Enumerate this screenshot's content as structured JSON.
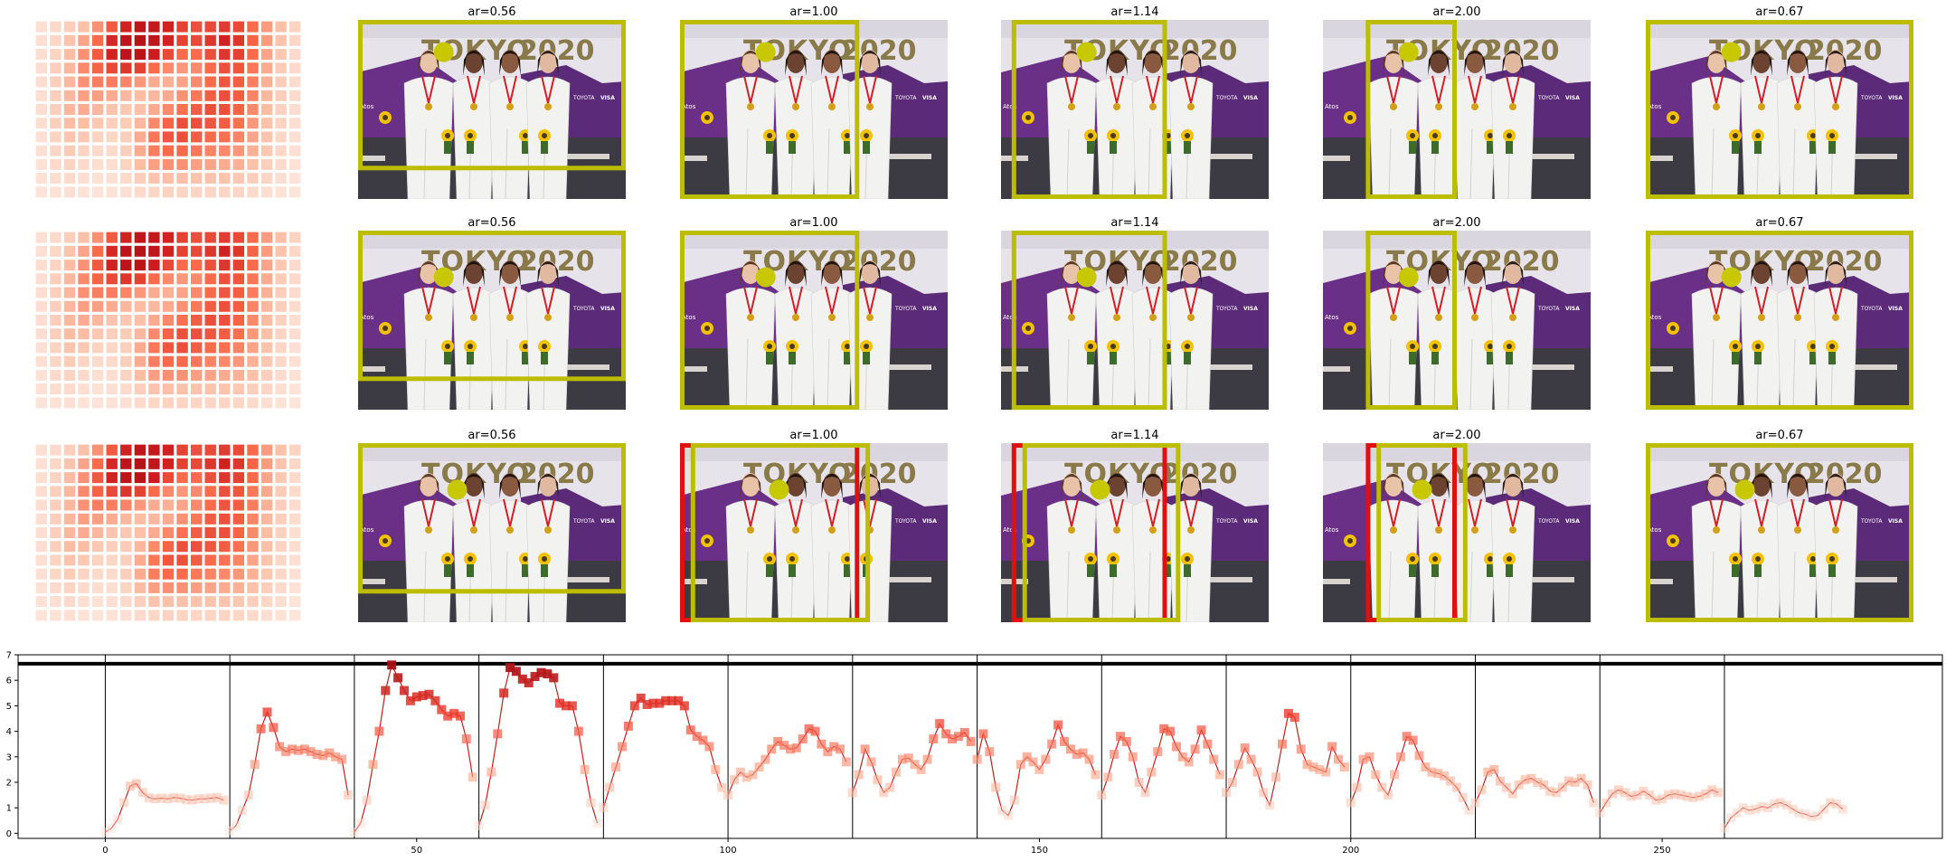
{
  "figure": {
    "panel_titles": [
      "ar=0.56",
      "ar=1.00",
      "ar=1.14",
      "ar=2.00",
      "ar=0.67"
    ],
    "rows": 3,
    "colors": {
      "crop_box": "#bdbd00",
      "alt_box": "#e01010",
      "marker_dot": "#c8c800",
      "photo_backdrop_purple": "#6a2f86",
      "photo_floor": "#3c3a42",
      "suits": "#f2f2f0",
      "heat_low": "#fde9df",
      "heat_high": "#a50f15"
    },
    "heatmap": {
      "type": "heatmap",
      "cols": 19,
      "rows": 13,
      "matrix": [
        [
          0.05,
          0.08,
          0.14,
          0.22,
          0.38,
          0.55,
          0.72,
          0.82,
          0.78,
          0.72,
          0.62,
          0.58,
          0.6,
          0.64,
          0.6,
          0.5,
          0.35,
          0.22,
          0.12
        ],
        [
          0.05,
          0.1,
          0.2,
          0.32,
          0.5,
          0.7,
          0.85,
          0.9,
          0.82,
          0.72,
          0.62,
          0.6,
          0.66,
          0.72,
          0.66,
          0.52,
          0.35,
          0.2,
          0.1
        ],
        [
          0.06,
          0.12,
          0.24,
          0.38,
          0.55,
          0.72,
          0.85,
          0.86,
          0.74,
          0.6,
          0.5,
          0.5,
          0.58,
          0.66,
          0.62,
          0.5,
          0.32,
          0.18,
          0.08
        ],
        [
          0.06,
          0.14,
          0.26,
          0.4,
          0.52,
          0.6,
          0.66,
          0.62,
          0.5,
          0.4,
          0.36,
          0.4,
          0.5,
          0.58,
          0.56,
          0.46,
          0.3,
          0.16,
          0.08
        ],
        [
          0.06,
          0.14,
          0.26,
          0.38,
          0.44,
          0.44,
          0.42,
          0.36,
          0.3,
          0.28,
          0.32,
          0.4,
          0.5,
          0.56,
          0.54,
          0.44,
          0.28,
          0.15,
          0.07
        ],
        [
          0.06,
          0.14,
          0.26,
          0.34,
          0.34,
          0.3,
          0.26,
          0.24,
          0.26,
          0.3,
          0.38,
          0.46,
          0.54,
          0.58,
          0.54,
          0.42,
          0.26,
          0.14,
          0.07
        ],
        [
          0.06,
          0.14,
          0.26,
          0.3,
          0.26,
          0.2,
          0.18,
          0.22,
          0.3,
          0.4,
          0.48,
          0.54,
          0.58,
          0.58,
          0.52,
          0.4,
          0.24,
          0.13,
          0.06
        ],
        [
          0.06,
          0.14,
          0.24,
          0.24,
          0.18,
          0.14,
          0.16,
          0.26,
          0.4,
          0.52,
          0.58,
          0.58,
          0.56,
          0.54,
          0.48,
          0.36,
          0.22,
          0.12,
          0.06
        ],
        [
          0.05,
          0.12,
          0.2,
          0.18,
          0.12,
          0.1,
          0.14,
          0.3,
          0.46,
          0.56,
          0.58,
          0.54,
          0.5,
          0.48,
          0.42,
          0.32,
          0.2,
          0.1,
          0.05
        ],
        [
          0.05,
          0.1,
          0.16,
          0.12,
          0.08,
          0.08,
          0.14,
          0.3,
          0.44,
          0.5,
          0.5,
          0.46,
          0.42,
          0.4,
          0.36,
          0.28,
          0.18,
          0.09,
          0.05
        ],
        [
          0.04,
          0.08,
          0.12,
          0.08,
          0.06,
          0.06,
          0.12,
          0.24,
          0.34,
          0.38,
          0.38,
          0.34,
          0.32,
          0.3,
          0.28,
          0.22,
          0.14,
          0.08,
          0.04
        ],
        [
          0.04,
          0.06,
          0.08,
          0.06,
          0.04,
          0.05,
          0.08,
          0.14,
          0.2,
          0.22,
          0.22,
          0.2,
          0.2,
          0.2,
          0.18,
          0.14,
          0.1,
          0.06,
          0.03
        ],
        [
          0.03,
          0.04,
          0.05,
          0.04,
          0.03,
          0.04,
          0.05,
          0.08,
          0.1,
          0.12,
          0.12,
          0.11,
          0.11,
          0.11,
          0.1,
          0.08,
          0.06,
          0.04,
          0.02
        ]
      ]
    },
    "photo_text": [
      "TOKYO",
      "2020",
      "Atos",
      "TOYOTA",
      "VISA"
    ],
    "boxes": [
      [
        {
          "left": 0.0,
          "top": 0.0,
          "right": 1.0,
          "bottom": 0.84,
          "dot_x": 0.32,
          "dot_y": 0.18
        },
        {
          "left": 0.0,
          "top": 0.0,
          "right": 0.67,
          "bottom": 1.0,
          "dot_x": 0.32,
          "dot_y": 0.18
        },
        {
          "left": 0.04,
          "top": 0.0,
          "right": 0.62,
          "bottom": 1.0,
          "dot_x": 0.32,
          "dot_y": 0.18
        },
        {
          "left": 0.16,
          "top": 0.0,
          "right": 0.5,
          "bottom": 1.0,
          "dot_x": 0.32,
          "dot_y": 0.18
        },
        {
          "left": 0.0,
          "top": 0.0,
          "right": 1.0,
          "bottom": 1.0,
          "dot_x": 0.32,
          "dot_y": 0.18
        }
      ],
      [
        {
          "left": 0.0,
          "top": 0.0,
          "right": 1.0,
          "bottom": 0.84,
          "dot_x": 0.32,
          "dot_y": 0.26
        },
        {
          "left": 0.0,
          "top": 0.0,
          "right": 0.67,
          "bottom": 1.0,
          "dot_x": 0.32,
          "dot_y": 0.26
        },
        {
          "left": 0.04,
          "top": 0.0,
          "right": 0.62,
          "bottom": 1.0,
          "dot_x": 0.32,
          "dot_y": 0.26
        },
        {
          "left": 0.16,
          "top": 0.0,
          "right": 0.5,
          "bottom": 1.0,
          "dot_x": 0.32,
          "dot_y": 0.26
        },
        {
          "left": 0.0,
          "top": 0.0,
          "right": 1.0,
          "bottom": 1.0,
          "dot_x": 0.32,
          "dot_y": 0.26
        }
      ],
      [
        {
          "left": 0.0,
          "top": 0.0,
          "right": 1.0,
          "bottom": 0.84,
          "dot_x": 0.37,
          "dot_y": 0.26,
          "alt": null
        },
        {
          "left": 0.04,
          "top": 0.0,
          "right": 0.71,
          "bottom": 1.0,
          "dot_x": 0.37,
          "dot_y": 0.26,
          "alt": {
            "left": 0.0,
            "top": 0.0,
            "right": 0.67,
            "bottom": 1.0
          }
        },
        {
          "left": 0.08,
          "top": 0.0,
          "right": 0.67,
          "bottom": 1.0,
          "dot_x": 0.37,
          "dot_y": 0.26,
          "alt": {
            "left": 0.04,
            "top": 0.0,
            "right": 0.62,
            "bottom": 1.0
          }
        },
        {
          "left": 0.2,
          "top": 0.0,
          "right": 0.54,
          "bottom": 1.0,
          "dot_x": 0.37,
          "dot_y": 0.26,
          "alt": {
            "left": 0.16,
            "top": 0.0,
            "right": 0.5,
            "bottom": 1.0
          }
        },
        {
          "left": 0.0,
          "top": 0.0,
          "right": 1.0,
          "bottom": 1.0,
          "dot_x": 0.37,
          "dot_y": 0.26,
          "alt": null
        }
      ]
    ]
  },
  "chart_data": {
    "type": "line",
    "xlim": [
      -14,
      295
    ],
    "ylim": [
      -0.2,
      7.0
    ],
    "xticks": [
      0,
      50,
      100,
      150,
      200,
      250
    ],
    "yticks": [
      0,
      1,
      2,
      3,
      4,
      5,
      6,
      7
    ],
    "vlines": [
      0,
      20,
      40,
      60,
      80,
      100,
      120,
      140,
      160,
      180,
      200,
      220,
      240,
      260
    ],
    "hline": 6.65,
    "grid": false,
    "marker": "square",
    "line_color": "#c81e1e",
    "cmap": [
      "#fde0d4",
      "#fb9b7c",
      "#ef3b2c",
      "#a50f15"
    ],
    "segments": [
      {
        "x_start": 0,
        "values": [
          0.05,
          0.2,
          0.55,
          1.2,
          1.85,
          1.95,
          1.6,
          1.4,
          1.35,
          1.38,
          1.35,
          1.4,
          1.38,
          1.32,
          1.3,
          1.35,
          1.35,
          1.38,
          1.4,
          1.3
        ]
      },
      {
        "x_start": 20,
        "values": [
          0.1,
          0.3,
          0.9,
          1.5,
          2.7,
          4.1,
          4.75,
          4.15,
          3.4,
          3.2,
          3.3,
          3.25,
          3.3,
          3.2,
          3.1,
          3.05,
          3.15,
          3.0,
          2.9,
          1.5
        ]
      },
      {
        "x_start": 40,
        "values": [
          0.05,
          0.4,
          1.3,
          2.7,
          4.0,
          5.6,
          6.6,
          6.1,
          5.6,
          5.2,
          5.35,
          5.4,
          5.45,
          5.2,
          4.85,
          4.6,
          4.7,
          4.6,
          3.7,
          2.2
        ]
      },
      {
        "x_start": 60,
        "values": [
          0.3,
          1.1,
          2.4,
          3.9,
          5.5,
          6.5,
          6.35,
          6.05,
          5.9,
          6.15,
          6.3,
          6.25,
          6.1,
          5.1,
          5.0,
          5.0,
          4.0,
          2.5,
          1.2,
          0.4
        ]
      },
      {
        "x_start": 80,
        "values": [
          1.0,
          1.8,
          2.6,
          3.4,
          4.2,
          5.0,
          5.3,
          5.05,
          5.1,
          5.1,
          5.2,
          5.2,
          5.2,
          5.0,
          4.05,
          3.8,
          3.65,
          3.4,
          2.5,
          1.8
        ]
      },
      {
        "x_start": 100,
        "values": [
          1.5,
          2.1,
          2.4,
          2.2,
          2.3,
          2.6,
          2.9,
          3.3,
          3.6,
          3.45,
          3.3,
          3.35,
          3.7,
          4.1,
          4.0,
          3.5,
          3.2,
          3.4,
          3.3,
          2.8
        ]
      },
      {
        "x_start": 120,
        "values": [
          1.6,
          2.3,
          3.3,
          2.8,
          2.1,
          1.6,
          1.8,
          2.4,
          2.9,
          2.95,
          2.7,
          2.5,
          2.9,
          3.7,
          4.3,
          3.9,
          3.7,
          3.8,
          3.95,
          3.6
        ]
      },
      {
        "x_start": 140,
        "values": [
          2.9,
          3.9,
          3.2,
          1.8,
          0.9,
          0.7,
          1.3,
          2.7,
          3.0,
          2.8,
          2.5,
          2.9,
          3.5,
          4.25,
          3.6,
          3.3,
          3.1,
          3.15,
          2.9,
          2.3
        ]
      },
      {
        "x_start": 160,
        "values": [
          1.5,
          2.2,
          3.1,
          3.8,
          3.6,
          3.0,
          2.0,
          1.6,
          2.4,
          3.2,
          4.1,
          4.0,
          3.4,
          3.0,
          2.8,
          3.3,
          4.05,
          3.5,
          2.9,
          2.3
        ]
      },
      {
        "x_start": 180,
        "values": [
          1.6,
          2.0,
          2.7,
          3.35,
          2.9,
          2.4,
          1.6,
          1.1,
          2.2,
          3.5,
          4.7,
          4.55,
          3.3,
          2.7,
          2.6,
          2.5,
          2.4,
          3.4,
          2.9,
          2.6
        ]
      },
      {
        "x_start": 200,
        "values": [
          1.2,
          1.8,
          2.9,
          3.0,
          2.3,
          1.8,
          1.5,
          2.3,
          3.0,
          3.8,
          3.65,
          3.05,
          2.6,
          2.4,
          2.35,
          2.25,
          2.05,
          1.8,
          1.4,
          0.9
        ]
      },
      {
        "x_start": 220,
        "values": [
          1.2,
          1.7,
          2.4,
          2.5,
          2.05,
          1.8,
          1.55,
          1.9,
          2.1,
          2.15,
          2.0,
          1.9,
          1.65,
          1.6,
          1.8,
          2.05,
          2.0,
          2.15,
          1.9,
          1.2
        ]
      },
      {
        "x_start": 240,
        "values": [
          0.8,
          1.2,
          1.55,
          1.7,
          1.6,
          1.45,
          1.5,
          1.65,
          1.5,
          1.3,
          1.35,
          1.5,
          1.55,
          1.5,
          1.45,
          1.4,
          1.45,
          1.55,
          1.7,
          1.6
        ]
      },
      {
        "x_start": 260,
        "values": [
          0.2,
          0.6,
          0.8,
          1.0,
          0.9,
          0.95,
          1.05,
          1.0,
          1.15,
          1.2,
          1.1,
          0.95,
          0.8,
          0.75,
          0.65,
          0.7,
          0.95,
          1.2,
          1.15,
          0.95
        ]
      }
    ]
  }
}
